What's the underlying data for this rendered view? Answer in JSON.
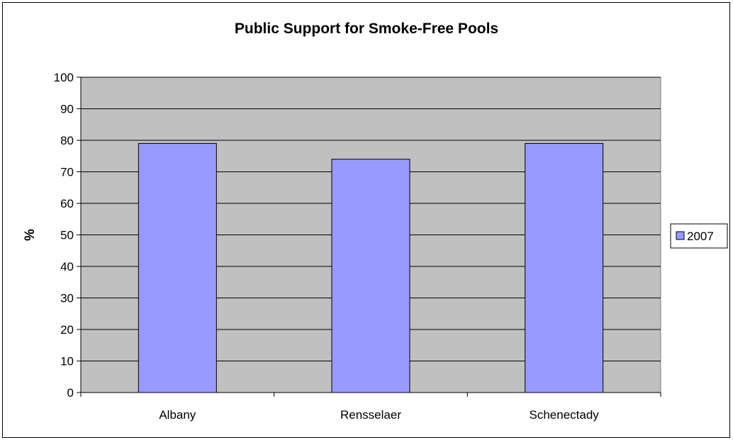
{
  "chart_data": {
    "type": "bar",
    "title": "Public Support for Smoke-Free Pools",
    "xlabel": "",
    "ylabel": "%",
    "categories": [
      "Albany",
      "Rensselaer",
      "Schenectady"
    ],
    "series": [
      {
        "name": "2007",
        "values": [
          79,
          74,
          79
        ],
        "color": "#9999ff"
      }
    ],
    "ylim": [
      0,
      100
    ],
    "yticks": [
      0,
      10,
      20,
      30,
      40,
      50,
      60,
      70,
      80,
      90,
      100
    ],
    "grid": true,
    "legend_position": "right",
    "plot_background": "#c0c0c0"
  }
}
